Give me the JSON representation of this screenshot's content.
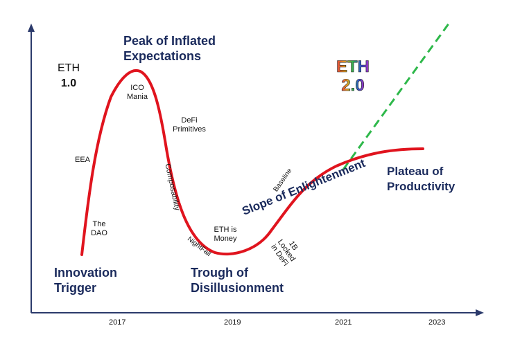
{
  "phases": {
    "peak": [
      "Peak of Inflated",
      "Expectations"
    ],
    "innovation": [
      "Innovation",
      "Trigger"
    ],
    "trough": [
      "Trough of",
      "Disillusionment"
    ],
    "slope": "Slope of Enlightenment",
    "plateau": [
      "Plateau of",
      "Productivity"
    ]
  },
  "eras": {
    "eth1": [
      "ETH",
      "1.0"
    ],
    "eth2_top": "ETH",
    "eth2_bottom": "2.0"
  },
  "annotations": {
    "ico": [
      "ICO",
      "Mania"
    ],
    "defi": [
      "DeFi",
      "Primitives"
    ],
    "eea": "EEA",
    "dao": [
      "The",
      "DAO"
    ],
    "composability": "Composability",
    "nightfall": "NightFall",
    "ethmoney": [
      "ETH is",
      "Money"
    ],
    "baseline": "Baseline",
    "locked": [
      "1B",
      "Locked",
      "in DeFi"
    ]
  },
  "x_ticks": [
    "2017",
    "2019",
    "2021",
    "2023"
  ],
  "colors": {
    "curve": "#e0141e",
    "projection": "#2eb84a",
    "axis": "#2b3a6b",
    "phase_text": "#1a2a5c"
  }
}
